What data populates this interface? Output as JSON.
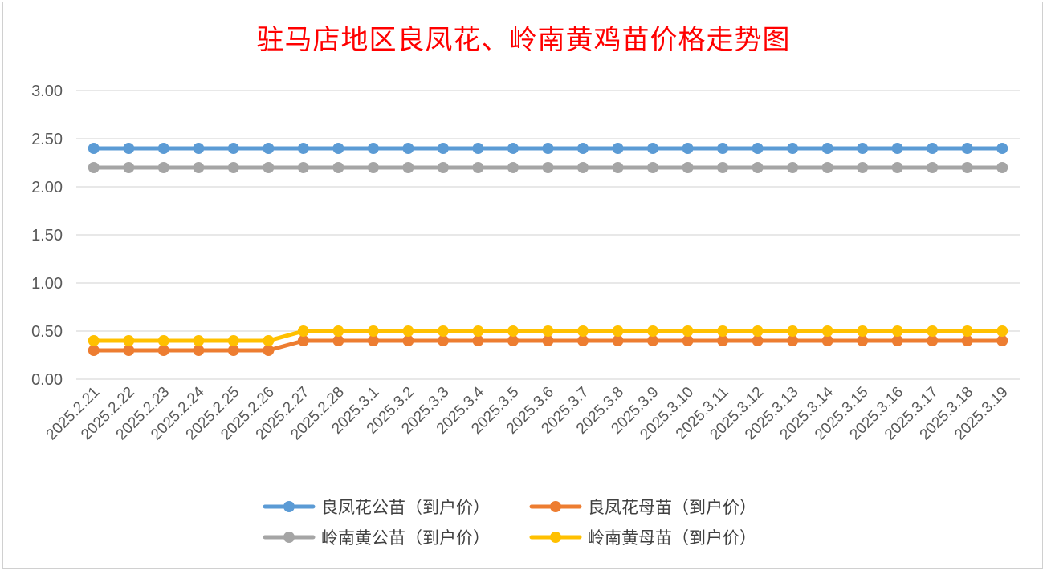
{
  "chart_data": {
    "type": "line",
    "title": "驻马店地区良凤花、岭南黄鸡苗价格走势图",
    "xlabel": "",
    "ylabel": "",
    "ylim": [
      0,
      3
    ],
    "yticks": [
      "0.00",
      "0.50",
      "1.00",
      "1.50",
      "2.00",
      "2.50",
      "3.00"
    ],
    "grid": true,
    "legend_position": "bottom",
    "categories": [
      "2025.2.21",
      "2025.2.22",
      "2025.2.23",
      "2025.2.24",
      "2025.2.25",
      "2025.2.26",
      "2025.2.27",
      "2025.2.28",
      "2025.3.1",
      "2025.3.2",
      "2025.3.3",
      "2025.3.4",
      "2025.3.5",
      "2025.3.6",
      "2025.3.7",
      "2025.3.8",
      "2025.3.9",
      "2025.3.10",
      "2025.3.11",
      "2025.3.12",
      "2025.3.13",
      "2025.3.14",
      "2025.3.15",
      "2025.3.16",
      "2025.3.17",
      "2025.3.18",
      "2025.3.19"
    ],
    "series": [
      {
        "name": "良凤花公苗（到户价）",
        "color": "#5b9bd5",
        "values": [
          2.4,
          2.4,
          2.4,
          2.4,
          2.4,
          2.4,
          2.4,
          2.4,
          2.4,
          2.4,
          2.4,
          2.4,
          2.4,
          2.4,
          2.4,
          2.4,
          2.4,
          2.4,
          2.4,
          2.4,
          2.4,
          2.4,
          2.4,
          2.4,
          2.4,
          2.4,
          2.4
        ]
      },
      {
        "name": "良凤花母苗（到户价）",
        "color": "#ed7d31",
        "values": [
          0.3,
          0.3,
          0.3,
          0.3,
          0.3,
          0.3,
          0.4,
          0.4,
          0.4,
          0.4,
          0.4,
          0.4,
          0.4,
          0.4,
          0.4,
          0.4,
          0.4,
          0.4,
          0.4,
          0.4,
          0.4,
          0.4,
          0.4,
          0.4,
          0.4,
          0.4,
          0.4
        ]
      },
      {
        "name": "岭南黄公苗（到户价）",
        "color": "#a5a5a5",
        "values": [
          2.2,
          2.2,
          2.2,
          2.2,
          2.2,
          2.2,
          2.2,
          2.2,
          2.2,
          2.2,
          2.2,
          2.2,
          2.2,
          2.2,
          2.2,
          2.2,
          2.2,
          2.2,
          2.2,
          2.2,
          2.2,
          2.2,
          2.2,
          2.2,
          2.2,
          2.2,
          2.2
        ]
      },
      {
        "name": "岭南黄母苗（到户价）",
        "color": "#ffc000",
        "values": [
          0.4,
          0.4,
          0.4,
          0.4,
          0.4,
          0.4,
          0.5,
          0.5,
          0.5,
          0.5,
          0.5,
          0.5,
          0.5,
          0.5,
          0.5,
          0.5,
          0.5,
          0.5,
          0.5,
          0.5,
          0.5,
          0.5,
          0.5,
          0.5,
          0.5,
          0.5,
          0.5
        ]
      }
    ]
  }
}
